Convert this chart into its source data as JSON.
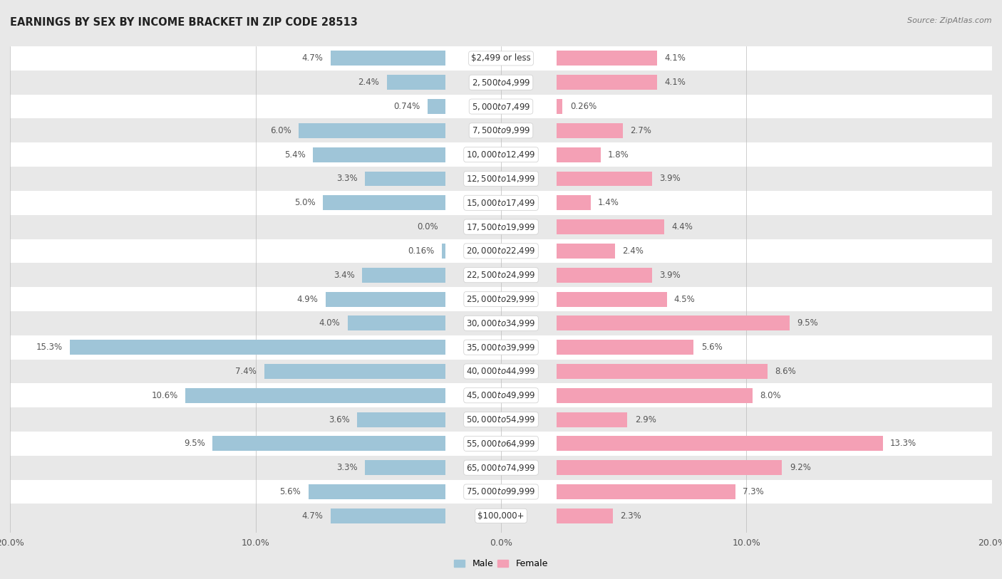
{
  "title": "EARNINGS BY SEX BY INCOME BRACKET IN ZIP CODE 28513",
  "source": "Source: ZipAtlas.com",
  "categories": [
    "$2,499 or less",
    "$2,500 to $4,999",
    "$5,000 to $7,499",
    "$7,500 to $9,999",
    "$10,000 to $12,499",
    "$12,500 to $14,999",
    "$15,000 to $17,499",
    "$17,500 to $19,999",
    "$20,000 to $22,499",
    "$22,500 to $24,999",
    "$25,000 to $29,999",
    "$30,000 to $34,999",
    "$35,000 to $39,999",
    "$40,000 to $44,999",
    "$45,000 to $49,999",
    "$50,000 to $54,999",
    "$55,000 to $64,999",
    "$65,000 to $74,999",
    "$75,000 to $99,999",
    "$100,000+"
  ],
  "male_values": [
    4.7,
    2.4,
    0.74,
    6.0,
    5.4,
    3.3,
    5.0,
    0.0,
    0.16,
    3.4,
    4.9,
    4.0,
    15.3,
    7.4,
    10.6,
    3.6,
    9.5,
    3.3,
    5.6,
    4.7
  ],
  "female_values": [
    4.1,
    4.1,
    0.26,
    2.7,
    1.8,
    3.9,
    1.4,
    4.4,
    2.4,
    3.9,
    4.5,
    9.5,
    5.6,
    8.6,
    8.0,
    2.9,
    13.3,
    9.2,
    7.3,
    2.3
  ],
  "male_color": "#9fc5d8",
  "female_color": "#f4a0b5",
  "male_label": "Male",
  "female_label": "Female",
  "xlim": 20.0,
  "background_color": "#e8e8e8",
  "row_even_color": "#ffffff",
  "row_odd_color": "#e8e8e8",
  "label_fontsize": 8.5,
  "title_fontsize": 10.5,
  "source_fontsize": 8,
  "legend_fontsize": 9,
  "axis_fontsize": 9
}
